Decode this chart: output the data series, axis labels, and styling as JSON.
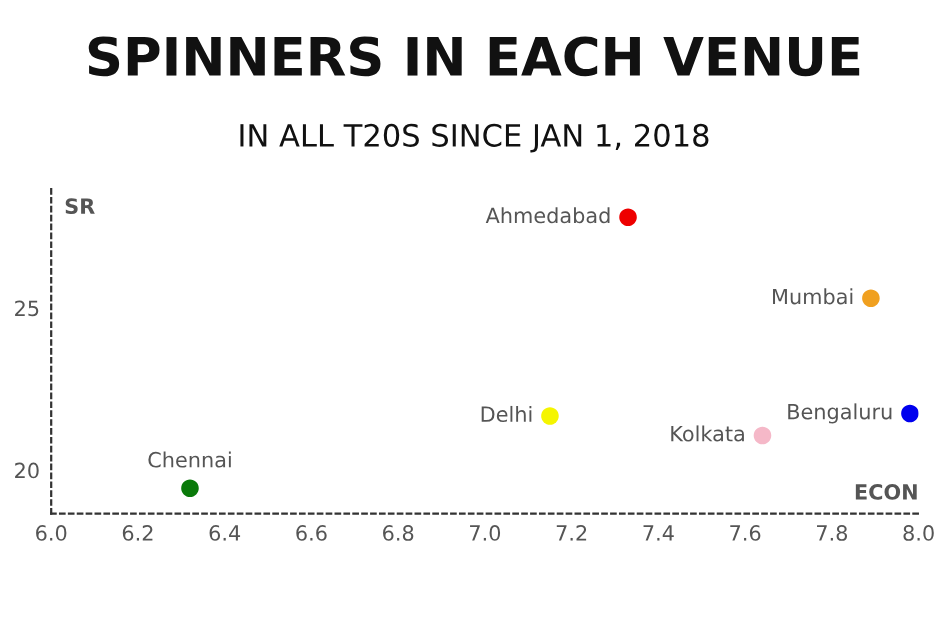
{
  "chart_data": {
    "type": "scatter",
    "title": "SPINNERS IN EACH VENUE",
    "subtitle": "IN ALL T20S SINCE JAN 1, 2018",
    "xlabel": "ECON",
    "ylabel": "SR",
    "x": [
      6.32,
      7.33,
      7.89,
      7.15,
      7.64,
      7.98
    ],
    "values": [
      19.44,
      27.8,
      25.3,
      21.67,
      21.07,
      21.75
    ],
    "colors": [
      "#0a7a0a",
      "#ee0000",
      "#f0a020",
      "#f5f500",
      "#f5b8c8",
      "#0000ee"
    ],
    "annotations": [
      {
        "text": "Chennai",
        "x": 6.32,
        "y": 19.44
      },
      {
        "text": "Ahmedabad",
        "x": 7.33,
        "y": 27.8
      },
      {
        "text": "Mumbai",
        "x": 7.89,
        "y": 25.3
      },
      {
        "text": "Delhi",
        "x": 7.15,
        "y": 21.67
      },
      {
        "text": "Kolkata",
        "x": 7.64,
        "y": 21.07
      },
      {
        "text": "Bengaluru",
        "x": 7.98,
        "y": 21.75
      }
    ],
    "xlim": [
      6.0,
      8.0
    ],
    "ylim": [
      18.66,
      28.7
    ],
    "xticks": [
      {
        "value": 6,
        "label": "6.0"
      },
      {
        "value": 6.2,
        "label": "6.2"
      },
      {
        "value": 6.4,
        "label": "6.4"
      },
      {
        "value": 6.6,
        "label": "6.6"
      },
      {
        "value": 6.8,
        "label": "6.8"
      },
      {
        "value": 7,
        "label": "7.0"
      },
      {
        "value": 7.2,
        "label": "7.2"
      },
      {
        "value": 7.4,
        "label": "7.4"
      },
      {
        "value": 7.6,
        "label": "7.6"
      },
      {
        "value": 7.8,
        "label": "7.8"
      },
      {
        "value": 8,
        "label": "8.0"
      }
    ],
    "yticks": [
      20,
      25
    ],
    "grid": false,
    "legend": false,
    "marker": "circle"
  }
}
